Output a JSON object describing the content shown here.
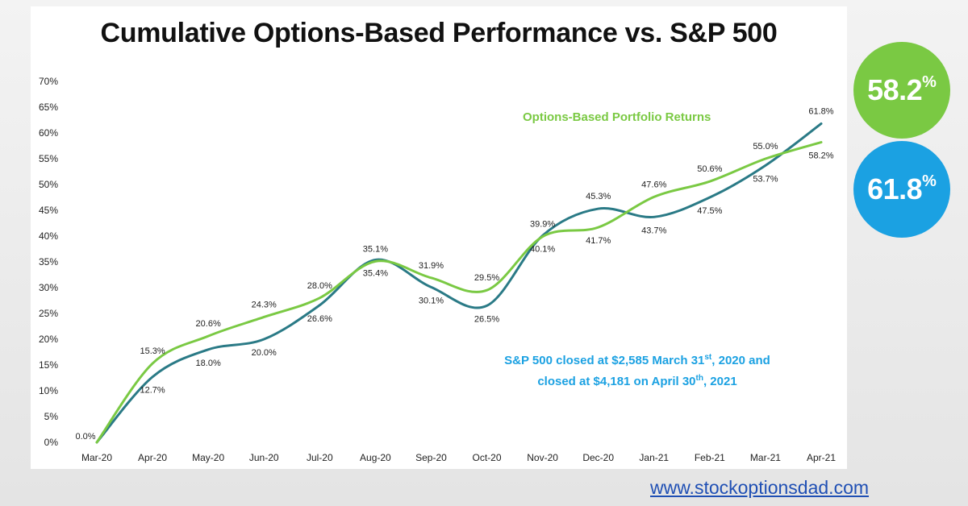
{
  "colors": {
    "options": "#7ac943",
    "sp500": "#2a7a86",
    "accent_blue": "#1ba1e2"
  },
  "header": {
    "title": "Cumulative Options-Based Performance vs. S&P 500"
  },
  "badges": {
    "options": {
      "value": "58.2",
      "unit": "%"
    },
    "sp500": {
      "value": "61.8",
      "unit": "%"
    }
  },
  "website": "www.stockoptionsdad.com",
  "chart_data": {
    "type": "line",
    "title": "Cumulative Options-Based Performance vs. S&P 500",
    "categories": [
      "Mar-20",
      "Apr-20",
      "May-20",
      "Jun-20",
      "Jul-20",
      "Aug-20",
      "Sep-20",
      "Oct-20",
      "Nov-20",
      "Dec-20",
      "Jan-21",
      "Feb-21",
      "Mar-21",
      "Apr-21"
    ],
    "y_ticks": [
      "0%",
      "5%",
      "10%",
      "15%",
      "20%",
      "25%",
      "30%",
      "35%",
      "40%",
      "45%",
      "50%",
      "55%",
      "60%",
      "65%",
      "70%"
    ],
    "ylim": [
      0,
      70
    ],
    "grid": false,
    "series": [
      {
        "name": "Options-Based Portfolio Returns",
        "values": [
          0.0,
          15.3,
          20.6,
          24.3,
          28.0,
          35.1,
          31.9,
          29.5,
          39.9,
          41.7,
          47.6,
          50.6,
          55.0,
          58.2
        ],
        "labels": [
          "0.0%",
          "15.3%",
          "20.6%",
          "24.3%",
          "28.0%",
          "35.1%",
          "31.9%",
          "29.5%",
          "39.9%",
          "41.7%",
          "47.6%",
          "50.6%",
          "55.0%",
          "58.2%"
        ],
        "color": "#7ac943"
      },
      {
        "values": [
          0.0,
          12.7,
          18.0,
          20.0,
          26.6,
          35.4,
          30.1,
          26.5,
          40.1,
          45.3,
          43.7,
          47.5,
          53.7,
          61.8
        ],
        "labels": [
          "0.0%",
          "12.7%",
          "18.0%",
          "20.0%",
          "26.6%",
          "35.4%",
          "30.1%",
          "26.5%",
          "40.1%",
          "45.3%",
          "43.7%",
          "47.5%",
          "53.7%",
          "61.8%"
        ],
        "color": "#2a7a86"
      }
    ],
    "annotation": {
      "line1": {
        "a": "S&P 500 closed at $2,585 March 31",
        "sup": "st",
        "b": ", 2020 and"
      },
      "line2": {
        "a": "closed at $4,181 on April 30",
        "sup": "th",
        "b": ", 2021"
      }
    }
  }
}
